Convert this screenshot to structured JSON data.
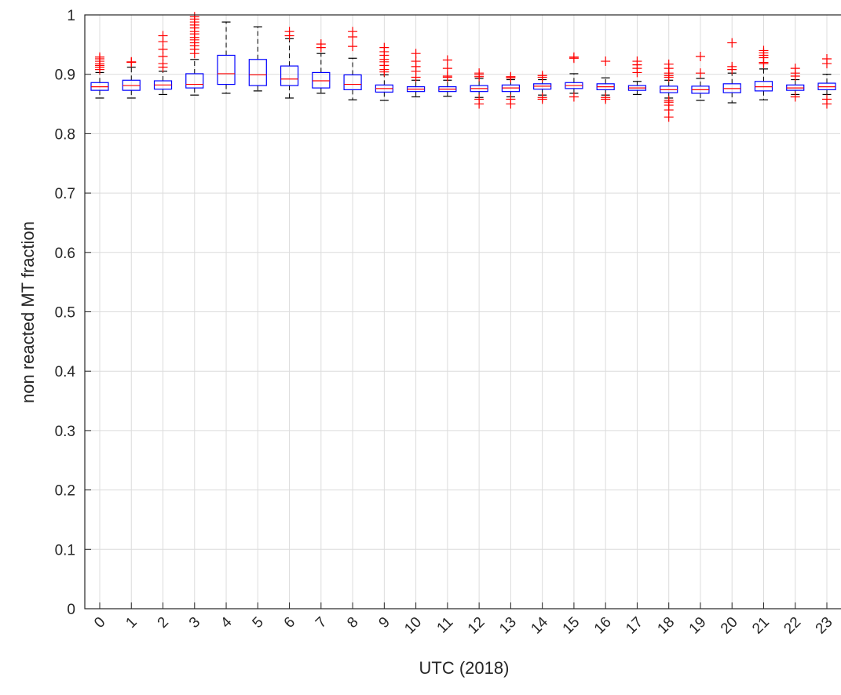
{
  "chart_data": {
    "type": "box",
    "xlabel": "UTC (2018)",
    "ylabel": "non reacted MT fraction",
    "ylim": [
      0,
      1
    ],
    "yticks": [
      0,
      0.1,
      0.2,
      0.3,
      0.4,
      0.5,
      0.6,
      0.7,
      0.8,
      0.9,
      1
    ],
    "ytick_labels": [
      "0",
      "0.1",
      "0.2",
      "0.3",
      "0.4",
      "0.5",
      "0.6",
      "0.7",
      "0.8",
      "0.9",
      "1"
    ],
    "categories": [
      "0",
      "1",
      "2",
      "3",
      "4",
      "5",
      "6",
      "7",
      "8",
      "9",
      "10",
      "11",
      "12",
      "13",
      "14",
      "15",
      "16",
      "17",
      "18",
      "19",
      "20",
      "21",
      "22",
      "23"
    ],
    "grid": true,
    "colors": {
      "box": "#0000ff",
      "median": "#ff0000",
      "whisker": "#000000",
      "outlier": "#ff0000",
      "grid": "#dcdcdc",
      "axis": "#262626"
    },
    "boxes": [
      {
        "x": "0",
        "whisker_low": 0.86,
        "q1": 0.873,
        "median": 0.879,
        "q3": 0.886,
        "whisker_high": 0.903,
        "outliers": [
          0.908,
          0.912,
          0.915,
          0.918,
          0.922,
          0.926,
          0.929
        ]
      },
      {
        "x": "1",
        "whisker_low": 0.86,
        "q1": 0.873,
        "median": 0.881,
        "q3": 0.89,
        "whisker_high": 0.912,
        "outliers": [
          0.92,
          0.921
        ]
      },
      {
        "x": "2",
        "whisker_low": 0.866,
        "q1": 0.875,
        "median": 0.882,
        "q3": 0.889,
        "whisker_high": 0.905,
        "outliers": [
          0.912,
          0.918,
          0.93,
          0.942,
          0.955,
          0.965
        ]
      },
      {
        "x": "3",
        "whisker_low": 0.865,
        "q1": 0.877,
        "median": 0.883,
        "q3": 0.901,
        "whisker_high": 0.925,
        "outliers": [
          0.935,
          0.942,
          0.948,
          0.953,
          0.958,
          0.962,
          0.968,
          0.972,
          0.978,
          0.983,
          0.988,
          0.993,
          0.997
        ]
      },
      {
        "x": "4",
        "whisker_low": 0.868,
        "q1": 0.883,
        "median": 0.901,
        "q3": 0.932,
        "whisker_high": 0.988,
        "outliers": []
      },
      {
        "x": "5",
        "whisker_low": 0.872,
        "q1": 0.881,
        "median": 0.899,
        "q3": 0.925,
        "whisker_high": 0.98,
        "outliers": []
      },
      {
        "x": "6",
        "whisker_low": 0.86,
        "q1": 0.881,
        "median": 0.892,
        "q3": 0.914,
        "whisker_high": 0.96,
        "outliers": [
          0.965,
          0.972
        ]
      },
      {
        "x": "7",
        "whisker_low": 0.868,
        "q1": 0.877,
        "median": 0.889,
        "q3": 0.903,
        "whisker_high": 0.935,
        "outliers": [
          0.945,
          0.951
        ]
      },
      {
        "x": "8",
        "whisker_low": 0.857,
        "q1": 0.874,
        "median": 0.883,
        "q3": 0.899,
        "whisker_high": 0.927,
        "outliers": [
          0.947,
          0.963,
          0.972
        ]
      },
      {
        "x": "9",
        "whisker_low": 0.856,
        "q1": 0.87,
        "median": 0.876,
        "q3": 0.882,
        "whisker_high": 0.899,
        "outliers": [
          0.904,
          0.908,
          0.915,
          0.921,
          0.925,
          0.932,
          0.938,
          0.945
        ]
      },
      {
        "x": "10",
        "whisker_low": 0.862,
        "q1": 0.871,
        "median": 0.875,
        "q3": 0.879,
        "whisker_high": 0.89,
        "outliers": [
          0.895,
          0.905,
          0.913,
          0.922,
          0.935
        ]
      },
      {
        "x": "11",
        "whisker_low": 0.863,
        "q1": 0.871,
        "median": 0.875,
        "q3": 0.879,
        "whisker_high": 0.89,
        "outliers": [
          0.895,
          0.897,
          0.91,
          0.924
        ]
      },
      {
        "x": "12",
        "whisker_low": 0.861,
        "q1": 0.871,
        "median": 0.876,
        "q3": 0.881,
        "whisker_high": 0.893,
        "outliers": [
          0.85,
          0.858,
          0.896,
          0.899,
          0.902
        ]
      },
      {
        "x": "13",
        "whisker_low": 0.862,
        "q1": 0.871,
        "median": 0.877,
        "q3": 0.882,
        "whisker_high": 0.891,
        "outliers": [
          0.85,
          0.858,
          0.894,
          0.896
        ]
      },
      {
        "x": "14",
        "whisker_low": 0.865,
        "q1": 0.875,
        "median": 0.88,
        "q3": 0.884,
        "whisker_high": 0.891,
        "outliers": [
          0.858,
          0.861,
          0.895,
          0.898
        ]
      },
      {
        "x": "15",
        "whisker_low": 0.868,
        "q1": 0.876,
        "median": 0.881,
        "q3": 0.886,
        "whisker_high": 0.901,
        "outliers": [
          0.862,
          0.927,
          0.929
        ]
      },
      {
        "x": "16",
        "whisker_low": 0.865,
        "q1": 0.874,
        "median": 0.879,
        "q3": 0.884,
        "whisker_high": 0.894,
        "outliers": [
          0.858,
          0.861,
          0.922
        ]
      },
      {
        "x": "17",
        "whisker_low": 0.866,
        "q1": 0.873,
        "median": 0.877,
        "q3": 0.881,
        "whisker_high": 0.888,
        "outliers": [
          0.903,
          0.91,
          0.916,
          0.922
        ]
      },
      {
        "x": "18",
        "whisker_low": 0.86,
        "q1": 0.869,
        "median": 0.874,
        "q3": 0.88,
        "whisker_high": 0.89,
        "outliers": [
          0.828,
          0.84,
          0.848,
          0.853,
          0.856,
          0.895,
          0.898,
          0.902,
          0.91,
          0.917
        ]
      },
      {
        "x": "19",
        "whisker_low": 0.856,
        "q1": 0.868,
        "median": 0.874,
        "q3": 0.88,
        "whisker_high": 0.893,
        "outliers": [
          0.902,
          0.93
        ]
      },
      {
        "x": "20",
        "whisker_low": 0.852,
        "q1": 0.869,
        "median": 0.876,
        "q3": 0.884,
        "whisker_high": 0.902,
        "outliers": [
          0.908,
          0.913,
          0.953
        ]
      },
      {
        "x": "21",
        "whisker_low": 0.857,
        "q1": 0.872,
        "median": 0.879,
        "q3": 0.888,
        "whisker_high": 0.909,
        "outliers": [
          0.918,
          0.92,
          0.928,
          0.932,
          0.936,
          0.94
        ]
      },
      {
        "x": "22",
        "whisker_low": 0.866,
        "q1": 0.873,
        "median": 0.877,
        "q3": 0.882,
        "whisker_high": 0.891,
        "outliers": [
          0.862,
          0.897,
          0.902,
          0.91
        ]
      },
      {
        "x": "23",
        "whisker_low": 0.866,
        "q1": 0.874,
        "median": 0.879,
        "q3": 0.885,
        "whisker_high": 0.9,
        "outliers": [
          0.85,
          0.858,
          0.918,
          0.926
        ]
      }
    ]
  }
}
